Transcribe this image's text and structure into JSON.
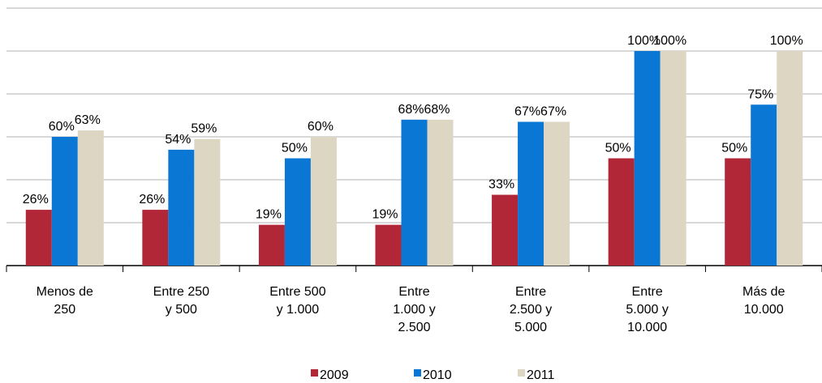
{
  "chart_data": {
    "type": "bar",
    "categories": [
      "Menos de 250",
      "Entre 250 y 500",
      "Entre 500 y 1.000",
      "Entre 1.000 y 2.500",
      "Entre 2.500 y 5.000",
      "Entre 5.000 y 10.000",
      "Más de 10.000"
    ],
    "series": [
      {
        "name": "2009",
        "color": "#b22738",
        "values": [
          26,
          26,
          19,
          19,
          33,
          50,
          50
        ],
        "value_labels": [
          "26%",
          "26%",
          "19%",
          "19%",
          "33%",
          "50%",
          "50%"
        ]
      },
      {
        "name": "2010",
        "color": "#0a77d4",
        "values": [
          60,
          54,
          50,
          68,
          67,
          100,
          75
        ],
        "value_labels": [
          "60%",
          "54%",
          "50%",
          "68%",
          "67%",
          "100%",
          "75%"
        ]
      },
      {
        "name": "2011",
        "color": "#ddd6c3",
        "values": [
          63,
          59,
          60,
          68,
          67,
          100,
          100
        ],
        "value_labels": [
          "63%",
          "59%",
          "60%",
          "68%",
          "67%",
          "100%",
          "100%"
        ]
      }
    ],
    "ylim": [
      0,
      120
    ],
    "yticks": [
      0,
      20,
      40,
      60,
      80,
      100,
      120
    ],
    "grid": true,
    "legend": "bottom"
  }
}
